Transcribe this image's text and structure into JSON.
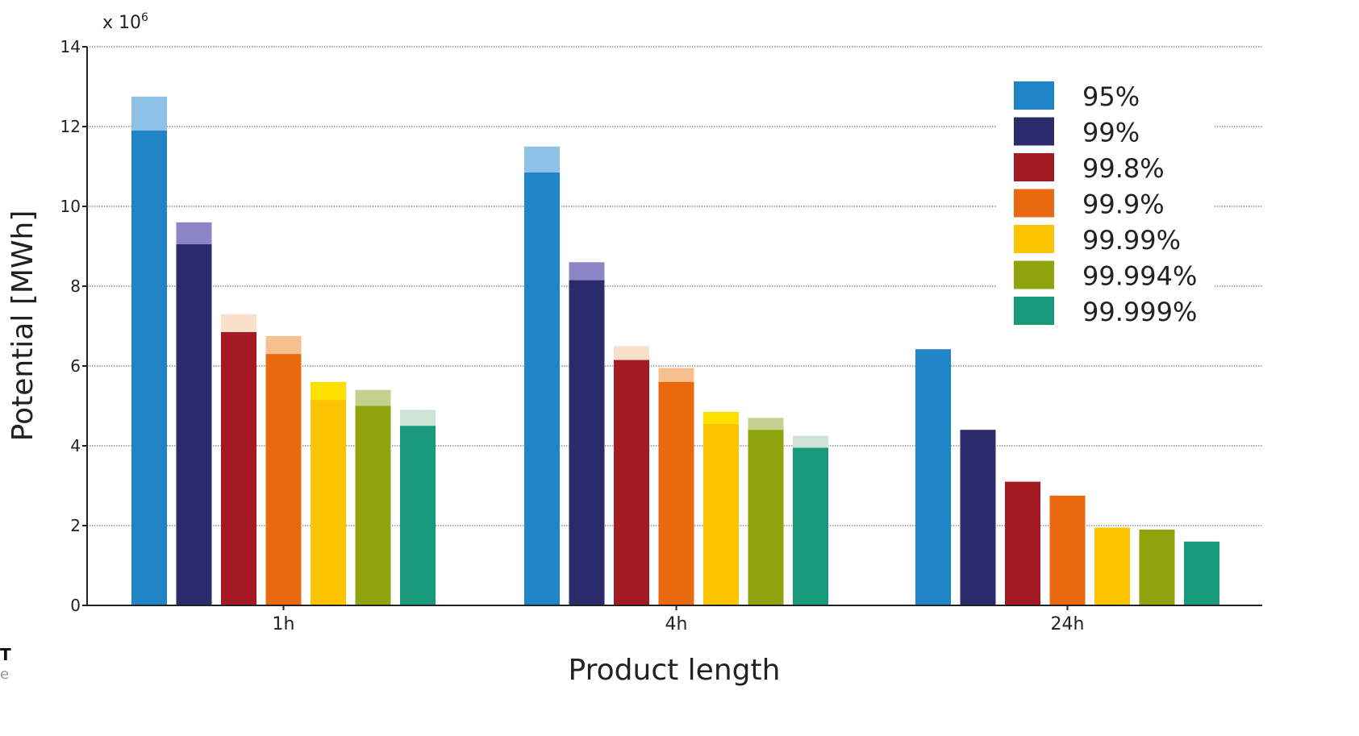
{
  "chart_data": {
    "type": "bar",
    "stacked_overlay": true,
    "title": "",
    "xlabel": "Product length",
    "ylabel": "Potential [MWh]",
    "y_multiplier_label": "x 10",
    "y_multiplier_exponent": "6",
    "ylim": [
      0,
      14
    ],
    "yticks": [
      0,
      2,
      4,
      6,
      8,
      10,
      12,
      14
    ],
    "grid": "horizontal",
    "legend_position": "top-right",
    "categories": [
      "1h",
      "4h",
      "24h"
    ],
    "series": [
      {
        "name": "95%",
        "color": "#1f85c6",
        "light_color": "#8ec1e6",
        "values": [
          11.9,
          10.85,
          6.42
        ],
        "upper_values": [
          12.75,
          11.5,
          6.42
        ]
      },
      {
        "name": "99%",
        "color": "#2b2a6b",
        "light_color": "#8c84c4",
        "values": [
          9.05,
          8.15,
          4.4
        ],
        "upper_values": [
          9.6,
          8.6,
          4.4
        ]
      },
      {
        "name": "99.8%",
        "color": "#a31a22",
        "light_color": "#f8e0cc",
        "values": [
          6.85,
          6.15,
          3.1
        ],
        "upper_values": [
          7.3,
          6.5,
          3.1
        ]
      },
      {
        "name": "99.9%",
        "color": "#e8690f",
        "light_color": "#f6c18e",
        "values": [
          6.3,
          5.6,
          2.75
        ],
        "upper_values": [
          6.75,
          5.95,
          2.75
        ]
      },
      {
        "name": "99.99%",
        "color": "#fcc300",
        "light_color": "#fde000",
        "values": [
          5.15,
          4.55,
          1.95
        ],
        "upper_values": [
          5.6,
          4.85,
          1.95
        ]
      },
      {
        "name": "99.994%",
        "color": "#8fa40c",
        "light_color": "#c3d08e",
        "values": [
          5.0,
          4.4,
          1.9
        ],
        "upper_values": [
          5.4,
          4.7,
          1.9
        ]
      },
      {
        "name": "99.999%",
        "color": "#17997a",
        "light_color": "#cde3d3",
        "values": [
          4.5,
          3.95,
          1.6
        ],
        "upper_values": [
          4.9,
          4.25,
          1.6
        ]
      }
    ]
  },
  "corner": {
    "line1": "T",
    "line2": "e"
  }
}
